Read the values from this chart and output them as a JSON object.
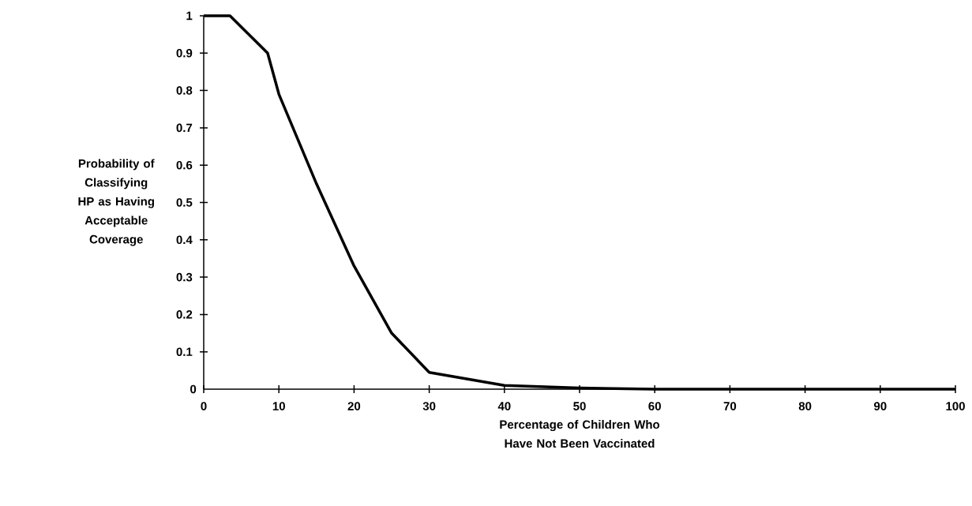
{
  "chart_data": {
    "type": "line",
    "xlabel": "Percentage of Children Who Have Not Been Vaccinated",
    "ylabel": "Probability of Classifying HP as Having Acceptable Coverage",
    "x": [
      0,
      3.5,
      8.5,
      10,
      15,
      20,
      25,
      30,
      40,
      50,
      60,
      70,
      80,
      90,
      100
    ],
    "values": [
      1,
      1,
      0.9,
      0.79,
      0.55,
      0.33,
      0.15,
      0.045,
      0.01,
      0.003,
      0,
      0,
      0,
      0,
      0
    ],
    "color": "#000000",
    "xlim": [
      0,
      100
    ],
    "ylim": [
      0,
      1
    ],
    "xticks": [
      0,
      10,
      20,
      30,
      40,
      50,
      60,
      70,
      80,
      90,
      100
    ],
    "yticks": [
      0,
      0.1,
      0.2,
      0.3,
      0.4,
      0.5,
      0.6,
      0.7,
      0.8,
      0.9,
      1
    ]
  }
}
